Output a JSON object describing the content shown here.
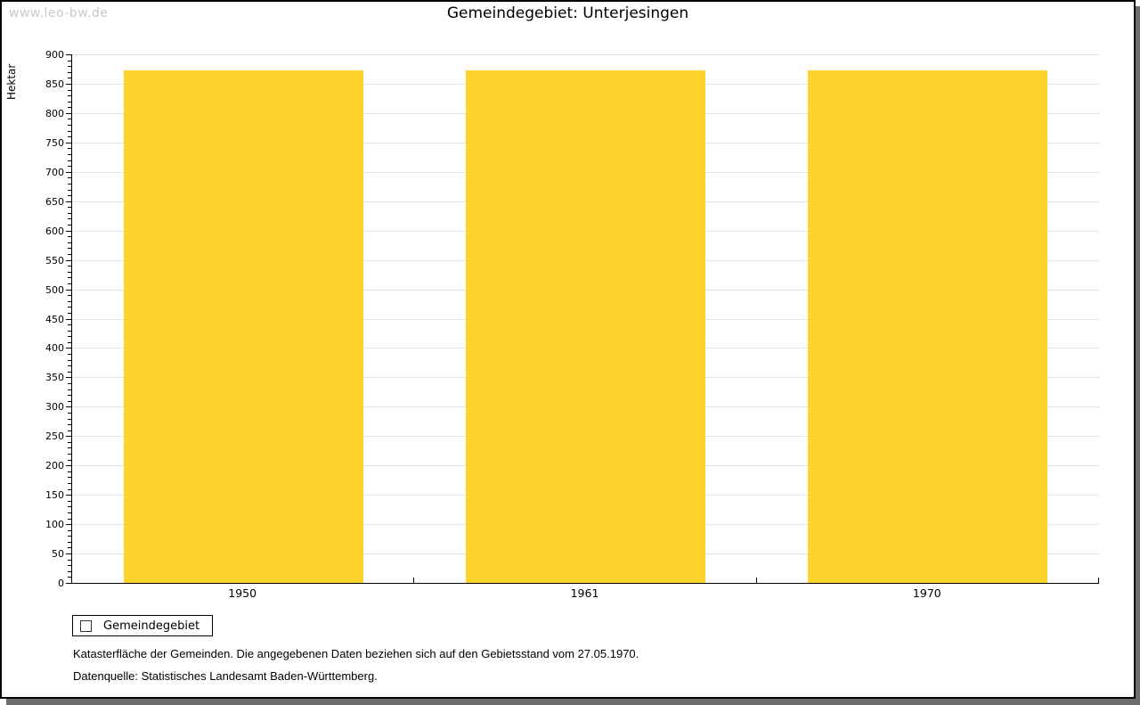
{
  "watermark": "www.leo-bw.de",
  "title": "Gemeindegebiet: Unterjesingen",
  "chart_data": {
    "type": "bar",
    "title": "Gemeindegebiet: Unterjesingen",
    "categories": [
      "1950",
      "1961",
      "1970"
    ],
    "series": [
      {
        "name": "Gemeindegebiet",
        "values": [
          873,
          873,
          873
        ],
        "color": "#fcd22d"
      }
    ],
    "xlabel": "",
    "ylabel": "Hektar",
    "ylim": [
      0,
      900
    ],
    "ytick_step": 50,
    "yminor_step": 10,
    "grid": true,
    "gridline_color": "#e2e2e2",
    "legend_position": "bottom-left"
  },
  "legend": {
    "items": [
      {
        "label": "Gemeindegebiet",
        "color": "#fcd22d"
      }
    ]
  },
  "footer": {
    "line1": "Katasterfläche der Gemeinden. Die angegebenen Daten beziehen sich auf den Gebietsstand vom 27.05.1970.",
    "line2": "Datenquelle: Statistisches Landesamt Baden-Württemberg."
  },
  "colors": {
    "bar": "#fcd22d",
    "gridline": "#e2e2e2",
    "axis": "#000000",
    "watermark": "#c9c9c9",
    "shadow": "#6e6e6e",
    "background": "#ffffff"
  }
}
